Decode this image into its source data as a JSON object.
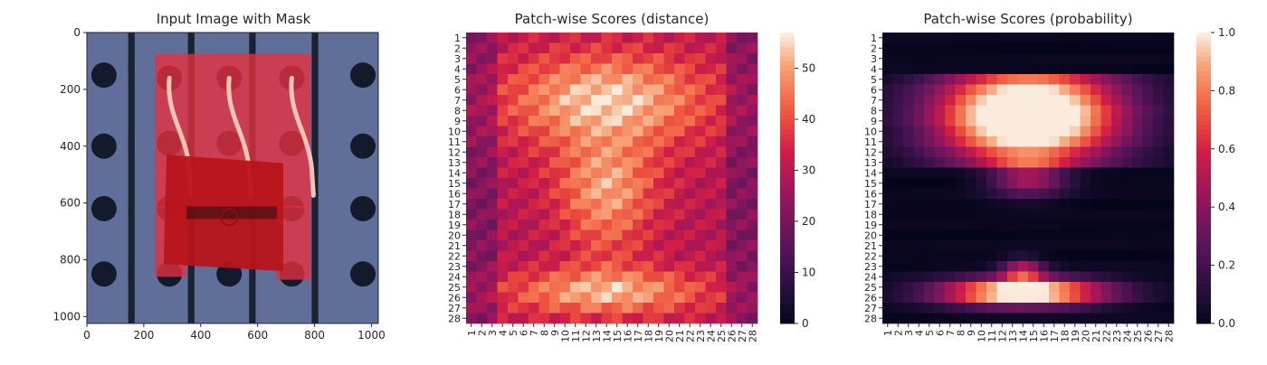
{
  "chart_data": [
    {
      "type": "image",
      "title": "Input Image with Mask",
      "xticks": [
        0,
        200,
        400,
        600,
        800,
        1000
      ],
      "yticks": [
        0,
        200,
        400,
        600,
        800,
        1000
      ],
      "xlim": [
        0,
        1024
      ],
      "ylim": [
        0,
        1024
      ],
      "background_color": "#5f6f9a",
      "mask_color": "#e8303f",
      "holes": [
        [
          60,
          150
        ],
        [
          60,
          400
        ],
        [
          60,
          620
        ],
        [
          60,
          850
        ],
        [
          970,
          150
        ],
        [
          970,
          400
        ],
        [
          970,
          620
        ],
        [
          970,
          850
        ],
        [
          290,
          160
        ],
        [
          500,
          160
        ],
        [
          720,
          160
        ],
        [
          290,
          390
        ],
        [
          500,
          390
        ],
        [
          720,
          390
        ],
        [
          290,
          620
        ],
        [
          500,
          620
        ],
        [
          720,
          620
        ],
        [
          290,
          850
        ],
        [
          500,
          850
        ],
        [
          720,
          850
        ]
      ]
    },
    {
      "type": "heatmap",
      "title": "Patch-wise Scores (distance)",
      "xticklabels": [
        "1",
        "2",
        "3",
        "4",
        "5",
        "6",
        "7",
        "8",
        "9",
        "10",
        "11",
        "12",
        "13",
        "14",
        "15",
        "16",
        "17",
        "18",
        "19",
        "20",
        "21",
        "22",
        "23",
        "24",
        "25",
        "26",
        "27",
        "28"
      ],
      "yticklabels": [
        "1",
        "2",
        "3",
        "4",
        "5",
        "6",
        "7",
        "8",
        "9",
        "10",
        "11",
        "12",
        "13",
        "14",
        "15",
        "16",
        "17",
        "18",
        "19",
        "20",
        "21",
        "22",
        "23",
        "24",
        "25",
        "26",
        "27",
        "28"
      ],
      "vmin": 0,
      "vmax": 57,
      "colorbar_ticks": [
        0,
        10,
        20,
        30,
        40,
        50
      ],
      "grid_rows": 28,
      "grid_cols": 28
    },
    {
      "type": "heatmap",
      "title": "Patch-wise Scores (probability)",
      "xticklabels": [
        "1",
        "2",
        "3",
        "4",
        "5",
        "6",
        "7",
        "8",
        "9",
        "10",
        "11",
        "12",
        "13",
        "14",
        "15",
        "16",
        "17",
        "18",
        "19",
        "20",
        "21",
        "22",
        "23",
        "24",
        "25",
        "26",
        "27",
        "28"
      ],
      "yticklabels": [
        "1",
        "2",
        "3",
        "4",
        "5",
        "6",
        "7",
        "8",
        "9",
        "10",
        "11",
        "12",
        "13",
        "14",
        "15",
        "16",
        "17",
        "18",
        "19",
        "20",
        "21",
        "22",
        "23",
        "24",
        "25",
        "26",
        "27",
        "28"
      ],
      "vmin": 0.0,
      "vmax": 1.0,
      "colorbar_ticks": [
        "0.0",
        "0.2",
        "0.4",
        "0.6",
        "0.8",
        "1.0"
      ],
      "grid_rows": 28,
      "grid_cols": 28
    }
  ]
}
